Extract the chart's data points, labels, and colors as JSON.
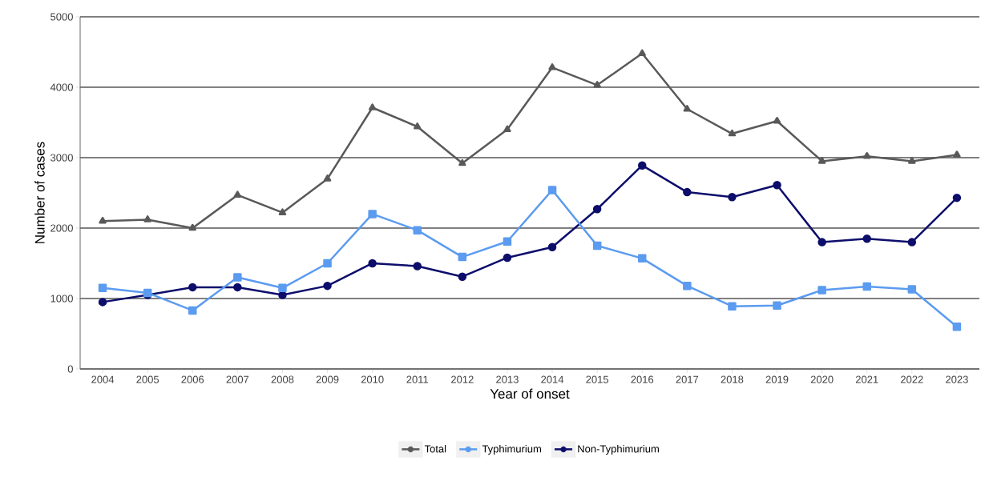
{
  "chart_data": {
    "type": "line",
    "xlabel": "Year of onset",
    "ylabel": "Number of cases",
    "categories": [
      "2004",
      "2005",
      "2006",
      "2007",
      "2008",
      "2009",
      "2010",
      "2011",
      "2012",
      "2013",
      "2014",
      "2015",
      "2016",
      "2017",
      "2018",
      "2019",
      "2020",
      "2021",
      "2022",
      "2023"
    ],
    "series": [
      {
        "name": "Total",
        "color": "#595959",
        "marker": "triangle",
        "values": [
          2100,
          2120,
          2000,
          2470,
          2220,
          2700,
          3710,
          3440,
          2920,
          3400,
          4280,
          4030,
          4480,
          3690,
          3340,
          3520,
          2950,
          3020,
          2950,
          3040
        ]
      },
      {
        "name": "Typhimurium",
        "color": "#5b9bf0",
        "marker": "square",
        "values": [
          1150,
          1080,
          830,
          1300,
          1150,
          1500,
          2200,
          1970,
          1590,
          1810,
          2540,
          1750,
          1570,
          1180,
          890,
          900,
          1120,
          1170,
          1130,
          600
        ]
      },
      {
        "name": "Non-Typhimurium",
        "color": "#0d0d6b",
        "marker": "circle",
        "values": [
          950,
          1050,
          1160,
          1160,
          1050,
          1180,
          1500,
          1460,
          1310,
          1580,
          1730,
          2270,
          2890,
          2510,
          2440,
          2610,
          1800,
          1850,
          1800,
          2430
        ]
      }
    ],
    "ylim": [
      0,
      5000
    ],
    "yticks": [
      0,
      1000,
      2000,
      3000,
      4000,
      5000
    ],
    "grid": "y",
    "legend": "bottom"
  }
}
